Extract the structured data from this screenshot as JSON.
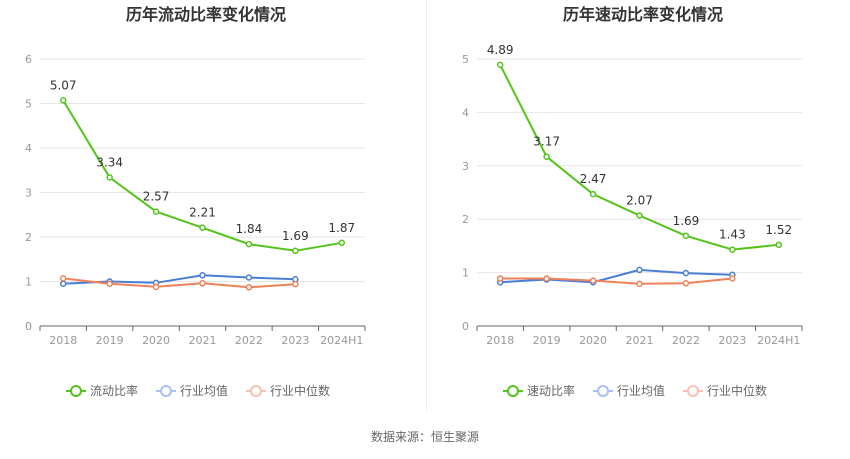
{
  "source_label": "数据来源：恒生聚源",
  "colors": {
    "series1": "#52c41a",
    "series2": "#4a7fd6",
    "series3": "#f0825a"
  },
  "chart_data": [
    {
      "type": "line",
      "title": "历年流动比率变化情况",
      "categories": [
        "2018",
        "2019",
        "2020",
        "2021",
        "2022",
        "2023",
        "2024H1"
      ],
      "ylim": [
        0,
        6
      ],
      "yticks": [
        0,
        1,
        2,
        3,
        4,
        5,
        6
      ],
      "grid": true,
      "legend_position": "bottom",
      "series": [
        {
          "name": "流动比率",
          "values": [
            5.07,
            3.34,
            2.57,
            2.21,
            1.84,
            1.69,
            1.87
          ],
          "labels": [
            "5.07",
            "3.34",
            "2.57",
            "2.21",
            "1.84",
            "1.69",
            "1.87"
          ],
          "show_labels": true
        },
        {
          "name": "行业均值",
          "values": [
            0.95,
            1.0,
            0.97,
            1.14,
            1.09,
            1.05,
            null
          ],
          "show_labels": false
        },
        {
          "name": "行业中位数",
          "values": [
            1.07,
            0.95,
            0.88,
            0.96,
            0.87,
            0.94,
            null
          ],
          "show_labels": false
        }
      ]
    },
    {
      "type": "line",
      "title": "历年速动比率变化情况",
      "categories": [
        "2018",
        "2019",
        "2020",
        "2021",
        "2022",
        "2023",
        "2024H1"
      ],
      "ylim": [
        0,
        5
      ],
      "yticks": [
        0,
        1,
        2,
        3,
        4,
        5
      ],
      "grid": true,
      "legend_position": "bottom",
      "series": [
        {
          "name": "速动比率",
          "values": [
            4.89,
            3.17,
            2.47,
            2.07,
            1.69,
            1.43,
            1.52
          ],
          "labels": [
            "4.89",
            "3.17",
            "2.47",
            "2.07",
            "1.69",
            "1.43",
            "1.52"
          ],
          "show_labels": true
        },
        {
          "name": "行业均值",
          "values": [
            0.82,
            0.87,
            0.82,
            1.05,
            0.99,
            0.96,
            null
          ],
          "show_labels": false
        },
        {
          "name": "行业中位数",
          "values": [
            0.89,
            0.89,
            0.85,
            0.79,
            0.8,
            0.89,
            null
          ],
          "show_labels": false
        }
      ]
    }
  ]
}
